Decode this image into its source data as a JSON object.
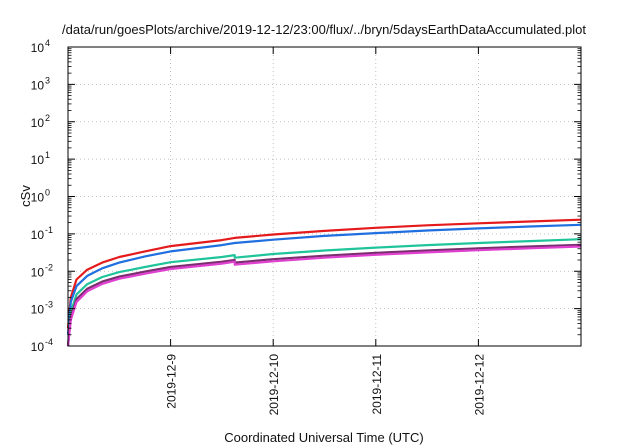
{
  "chart_data": {
    "type": "line",
    "title": "/data/run/goesPlots/archive/2019-12-12/23:00/flux/../bryn/5daysEarthDataAccumulated.plot",
    "xlabel": "Coordinated Universal Time (UTC)",
    "ylabel": "cSv",
    "y_scale": "log",
    "xlim": [
      "2019-12-08T00:00",
      "2019-12-13T00:00"
    ],
    "ylim": [
      0.0001,
      10000
    ],
    "x_ticks": [
      "2019-12-9",
      "2019-12-10",
      "2019-12-11",
      "2019-12-12"
    ],
    "y_tick_exponents": [
      -4,
      -3,
      -2,
      -1,
      0,
      1,
      2,
      3,
      4
    ],
    "y_tick_base": "10",
    "grid": true,
    "legend": "none",
    "series": [
      {
        "color": "#e41a1c",
        "x": [
          "2019-12-08T00:00",
          "2019-12-08T00:40",
          "2019-12-08T02:00",
          "2019-12-08T04:30",
          "2019-12-08T08:00",
          "2019-12-08T12:00",
          "2019-12-08T18:00",
          "2019-12-09T00:00",
          "2019-12-09T12:00",
          "2019-12-09T15:00",
          "2019-12-10T00:00",
          "2019-12-10T12:00",
          "2019-12-11T00:00",
          "2019-12-11T12:00",
          "2019-12-12T00:00",
          "2019-12-12T12:00",
          "2019-12-13T00:00"
        ],
        "y": [
          0.0003,
          0.002,
          0.006,
          0.011,
          0.017,
          0.024,
          0.034,
          0.047,
          0.068,
          0.078,
          0.096,
          0.12,
          0.145,
          0.17,
          0.192,
          0.215,
          0.24
        ]
      },
      {
        "color": "#1f6fe0",
        "x": [
          "2019-12-08T00:00",
          "2019-12-08T00:40",
          "2019-12-08T02:00",
          "2019-12-08T04:30",
          "2019-12-08T08:00",
          "2019-12-08T12:00",
          "2019-12-08T18:00",
          "2019-12-09T00:00",
          "2019-12-09T12:00",
          "2019-12-09T15:00",
          "2019-12-10T00:00",
          "2019-12-10T12:00",
          "2019-12-11T00:00",
          "2019-12-11T12:00",
          "2019-12-12T00:00",
          "2019-12-12T12:00",
          "2019-12-13T00:00"
        ],
        "y": [
          0.0002,
          0.0015,
          0.004,
          0.0075,
          0.012,
          0.017,
          0.025,
          0.034,
          0.05,
          0.057,
          0.07,
          0.088,
          0.105,
          0.123,
          0.14,
          0.158,
          0.175
        ]
      },
      {
        "color": "#20c49a",
        "x": [
          "2019-12-08T00:00",
          "2019-12-08T00:40",
          "2019-12-08T02:00",
          "2019-12-08T04:30",
          "2019-12-08T08:00",
          "2019-12-08T12:00",
          "2019-12-08T18:00",
          "2019-12-09T00:00",
          "2019-12-09T12:00",
          "2019-12-09T14:59",
          "2019-12-09T15:00",
          "2019-12-10T00:00",
          "2019-12-10T12:00",
          "2019-12-11T00:00",
          "2019-12-11T12:00",
          "2019-12-12T00:00",
          "2019-12-12T12:00",
          "2019-12-13T00:00"
        ],
        "y": [
          0.0001,
          0.0008,
          0.0024,
          0.0045,
          0.007,
          0.0095,
          0.013,
          0.0175,
          0.024,
          0.027,
          0.023,
          0.029,
          0.036,
          0.043,
          0.05,
          0.057,
          0.064,
          0.072
        ]
      },
      {
        "color": "#7a2e6e",
        "x": [
          "2019-12-08T00:00",
          "2019-12-08T00:40",
          "2019-12-08T02:00",
          "2019-12-08T04:30",
          "2019-12-08T08:00",
          "2019-12-08T12:00",
          "2019-12-08T18:00",
          "2019-12-09T00:00",
          "2019-12-09T12:00",
          "2019-12-09T14:59",
          "2019-12-09T15:00",
          "2019-12-10T00:00",
          "2019-12-10T12:00",
          "2019-12-11T00:00",
          "2019-12-11T12:00",
          "2019-12-12T00:00",
          "2019-12-12T12:00",
          "2019-12-13T00:00"
        ],
        "y": [
          0.0001,
          0.0006,
          0.0018,
          0.0034,
          0.0053,
          0.0072,
          0.0098,
          0.013,
          0.018,
          0.02,
          0.017,
          0.021,
          0.026,
          0.031,
          0.036,
          0.041,
          0.046,
          0.051
        ]
      },
      {
        "color": "#e040d0",
        "x": [
          "2019-12-08T00:00",
          "2019-12-08T00:40",
          "2019-12-08T02:00",
          "2019-12-08T04:30",
          "2019-12-08T08:00",
          "2019-12-08T12:00",
          "2019-12-08T18:00",
          "2019-12-09T00:00",
          "2019-12-09T12:00",
          "2019-12-09T14:59",
          "2019-12-09T15:00",
          "2019-12-10T00:00",
          "2019-12-10T12:00",
          "2019-12-11T00:00",
          "2019-12-11T12:00",
          "2019-12-12T00:00",
          "2019-12-12T12:00",
          "2019-12-13T00:00"
        ],
        "y": [
          0.0001,
          0.0005,
          0.0015,
          0.0029,
          0.0046,
          0.0063,
          0.0086,
          0.0115,
          0.016,
          0.018,
          0.015,
          0.0185,
          0.023,
          0.0275,
          0.032,
          0.0365,
          0.041,
          0.046
        ]
      }
    ]
  }
}
